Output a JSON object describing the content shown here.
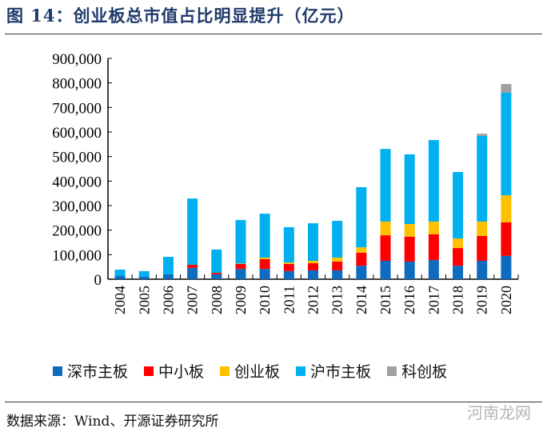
{
  "title": "图 14：创业板总市值占比明显提升（亿元）",
  "source": "数据来源：Wind、开源证券研究所",
  "watermark": "河南龙网",
  "chart_data": {
    "type": "bar",
    "stacked": true,
    "title": "",
    "xlabel": "",
    "ylabel": "",
    "ylim": [
      0,
      900000
    ],
    "yticks": [
      "0",
      "100,000",
      "200,000",
      "300,000",
      "400,000",
      "500,000",
      "600,000",
      "700,000",
      "800,000",
      "900,000"
    ],
    "grid": false,
    "legend_position": "bottom",
    "categories": [
      "2004",
      "2005",
      "2006",
      "2007",
      "2008",
      "2009",
      "2010",
      "2011",
      "2012",
      "2013",
      "2014",
      "2015",
      "2016",
      "2017",
      "2018",
      "2019",
      "2020"
    ],
    "series": [
      {
        "name": "深市主板",
        "color": "#0f6bbf",
        "values": [
          13000,
          10000,
          20000,
          46000,
          20000,
          42000,
          42000,
          33000,
          36000,
          36000,
          55000,
          75000,
          72000,
          78000,
          55000,
          75000,
          95000
        ]
      },
      {
        "name": "中小板",
        "color": "#ff0000",
        "values": [
          0,
          0,
          0,
          13000,
          6000,
          20000,
          40000,
          29000,
          29000,
          36000,
          53000,
          104000,
          101000,
          105000,
          72000,
          101000,
          137000
        ]
      },
      {
        "name": "创业板",
        "color": "#ffc000",
        "values": [
          0,
          0,
          0,
          0,
          0,
          2000,
          6000,
          6000,
          10000,
          16000,
          22000,
          56000,
          52000,
          52000,
          39000,
          59000,
          110000
        ]
      },
      {
        "name": "沪市主板",
        "color": "#00b0f0",
        "values": [
          26000,
          23000,
          71000,
          270000,
          95000,
          177000,
          179000,
          144000,
          153000,
          150000,
          245000,
          296000,
          284000,
          332000,
          271000,
          349000,
          418000
        ]
      },
      {
        "name": "科创板",
        "color": "#a0a0a0",
        "values": [
          0,
          0,
          0,
          0,
          0,
          0,
          0,
          0,
          0,
          0,
          0,
          0,
          0,
          0,
          0,
          9000,
          36000
        ]
      }
    ]
  }
}
